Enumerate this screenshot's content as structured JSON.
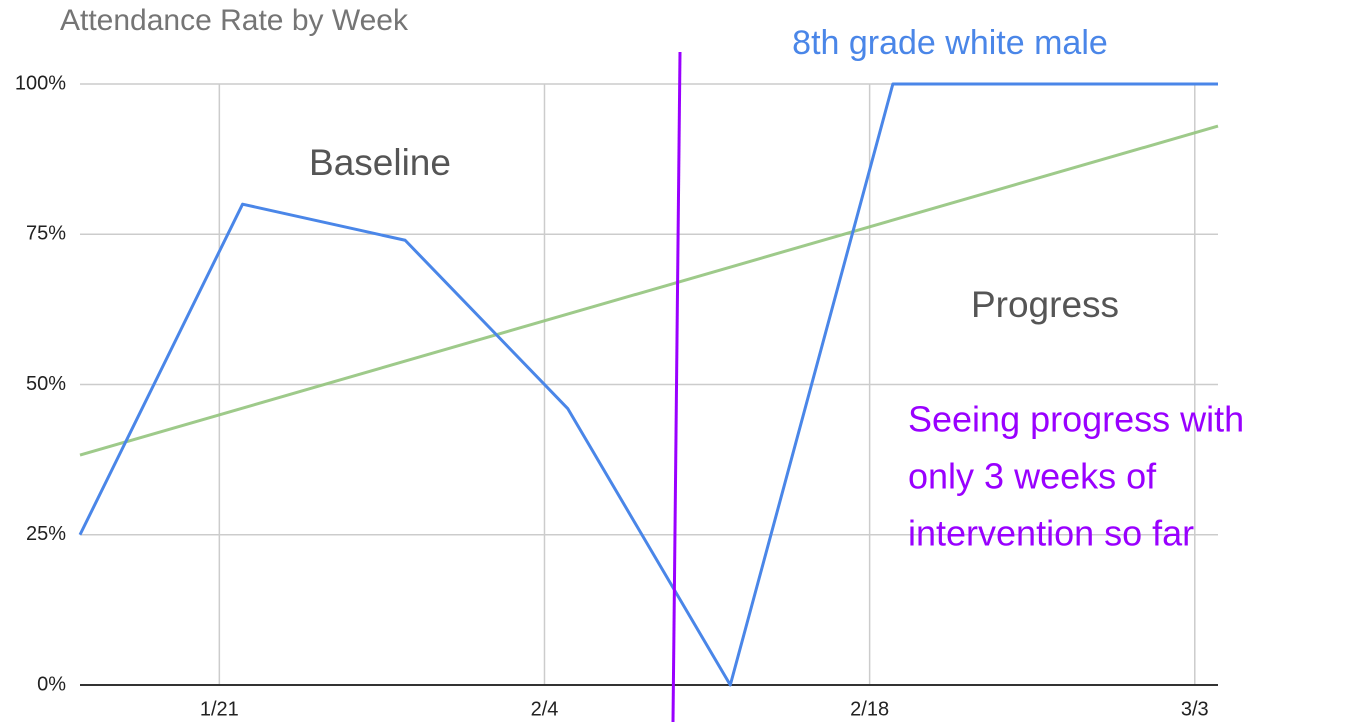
{
  "chart_data": {
    "type": "line",
    "title": "Attendance Rate by Week",
    "x": [
      "1/15",
      "1/22",
      "1/29",
      "2/5",
      "2/12",
      "2/19",
      "2/26",
      "3/4"
    ],
    "series": [
      {
        "name": "8th grade white male",
        "color": "#4a86e8",
        "values": [
          25,
          80,
          74,
          46,
          0,
          100,
          100,
          100
        ]
      }
    ],
    "trendline": {
      "type": "linear",
      "color": "#93c47d"
    },
    "xlim": [
      "1/15",
      "3/4"
    ],
    "xticks": [
      "1/21",
      "2/4",
      "2/18",
      "3/3"
    ],
    "ylim": [
      0,
      100
    ],
    "yticks": [
      {
        "value": 0,
        "label": "0%"
      },
      {
        "value": 25,
        "label": "25%"
      },
      {
        "value": 50,
        "label": "50%"
      },
      {
        "value": 75,
        "label": "75%"
      },
      {
        "value": 100,
        "label": "100%"
      }
    ],
    "grid": true,
    "annotations": [
      "Baseline",
      "Progress"
    ],
    "note": [
      "Seeing progress with",
      "only 3 weeks of",
      "intervention so far"
    ],
    "note_color": "#9900ff"
  }
}
